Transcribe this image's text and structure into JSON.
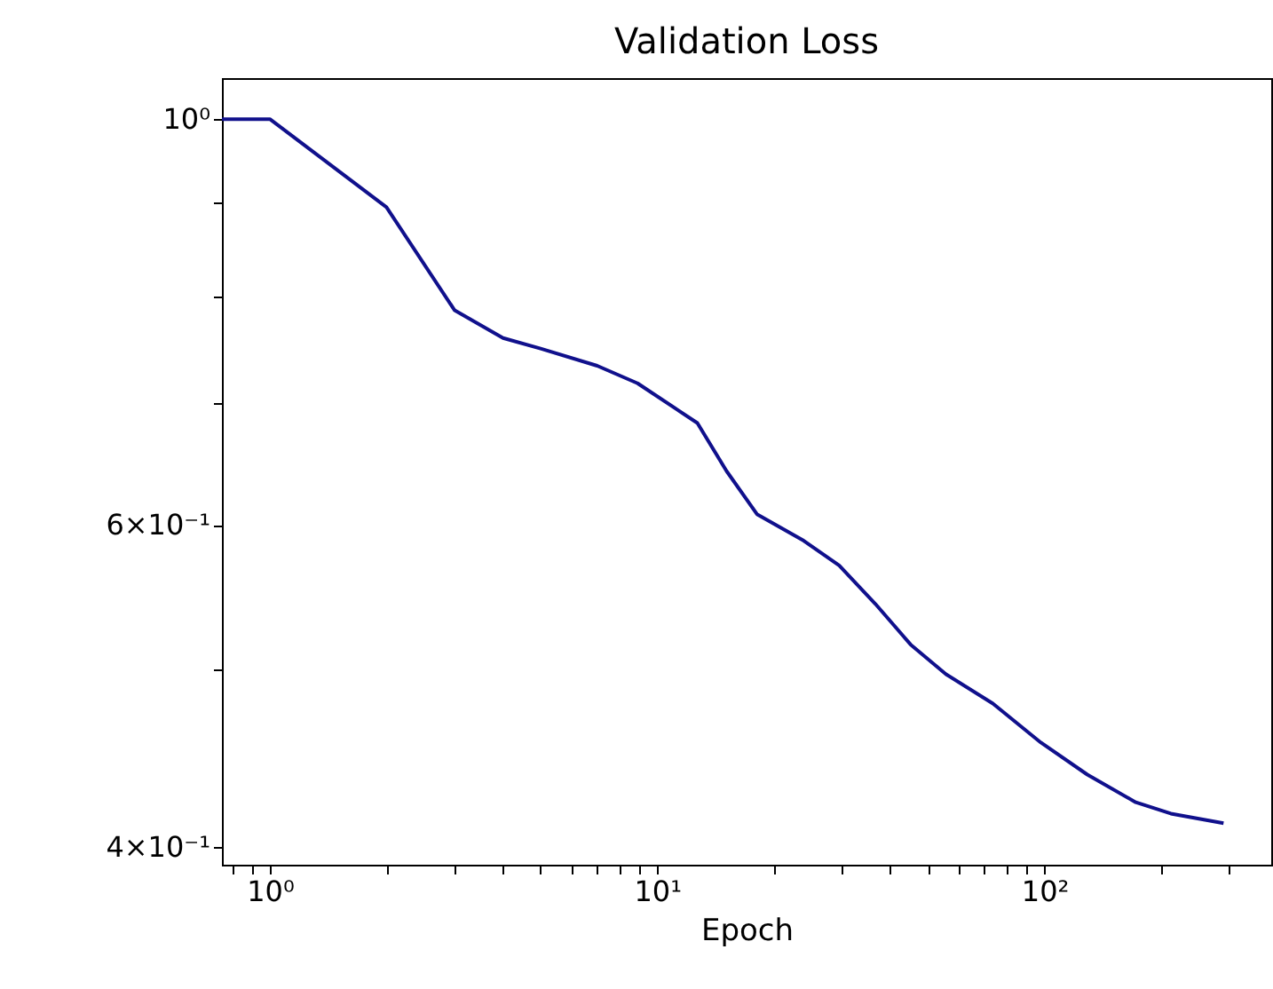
{
  "chart_data": {
    "type": "line",
    "title": "Validation Loss",
    "xlabel": "Epoch",
    "log": "xy",
    "grid": false,
    "marker": "none",
    "line_style": "solid",
    "xlim": [
      0.752,
      385
    ],
    "ylim": [
      0.391,
      1.053
    ],
    "xticks": [
      {
        "value": 0.8,
        "label": null
      },
      {
        "value": 0.9,
        "label": null
      },
      {
        "value": 1,
        "label": "10⁰"
      },
      {
        "value": 2,
        "label": null
      },
      {
        "value": 3,
        "label": null
      },
      {
        "value": 4,
        "label": null
      },
      {
        "value": 5,
        "label": null
      },
      {
        "value": 6,
        "label": null
      },
      {
        "value": 7,
        "label": null
      },
      {
        "value": 8,
        "label": null
      },
      {
        "value": 9,
        "label": null
      },
      {
        "value": 10,
        "label": "10¹"
      },
      {
        "value": 20,
        "label": null
      },
      {
        "value": 30,
        "label": null
      },
      {
        "value": 40,
        "label": null
      },
      {
        "value": 50,
        "label": null
      },
      {
        "value": 60,
        "label": null
      },
      {
        "value": 70,
        "label": null
      },
      {
        "value": 80,
        "label": null
      },
      {
        "value": 90,
        "label": null
      },
      {
        "value": 100,
        "label": "10²"
      },
      {
        "value": 200,
        "label": null
      },
      {
        "value": 300,
        "label": null
      }
    ],
    "yticks": [
      {
        "value": 0.4,
        "label": "4×10⁻¹"
      },
      {
        "value": 0.5,
        "label": null
      },
      {
        "value": 0.6,
        "label": "6×10⁻¹"
      },
      {
        "value": 0.7,
        "label": null
      },
      {
        "value": 0.8,
        "label": null
      },
      {
        "value": 0.9,
        "label": null
      },
      {
        "value": 1,
        "label": "10⁰"
      }
    ],
    "series": [
      {
        "color": "#10108c",
        "x": [
          0.752,
          1,
          2,
          3,
          4,
          5,
          7,
          8.9,
          12.7,
          15.1,
          18.1,
          23.9,
          29.5,
          36.6,
          45.1,
          55.7,
          73.6,
          97.9,
          129,
          172,
          212,
          290
        ],
        "values": [
          1.0,
          1.0,
          0.895,
          0.786,
          0.759,
          0.749,
          0.733,
          0.717,
          0.682,
          0.642,
          0.608,
          0.588,
          0.57,
          0.543,
          0.516,
          0.497,
          0.479,
          0.456,
          0.438,
          0.423,
          0.417,
          0.412
        ]
      }
    ]
  }
}
